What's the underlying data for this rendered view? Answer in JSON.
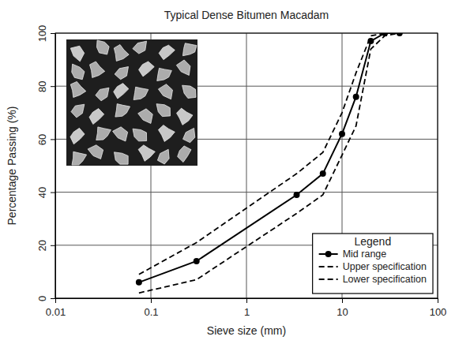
{
  "chart_data": {
    "type": "line",
    "title": "Typical Dense Bitumen Macadam",
    "x_label": "Sieve size (mm)",
    "y_label": "Percentage Passing (%)",
    "legend_title": "Legend",
    "x": [
      0.075,
      0.3,
      3.35,
      6.3,
      10,
      14,
      20,
      28,
      40
    ],
    "series": [
      {
        "name": "Mid range",
        "color": "#000000",
        "marker": "circle",
        "line_style": "solid",
        "values": [
          6,
          14,
          39,
          47,
          62,
          76,
          97,
          100,
          100
        ]
      },
      {
        "name": "Upper specification",
        "color": "#000000",
        "line_style": "dashed",
        "values": [
          9,
          21,
          47,
          55,
          70,
          85,
          99,
          100,
          100
        ]
      },
      {
        "name": "Lower specification",
        "color": "#000000",
        "line_style": "dashed",
        "values": [
          2,
          7,
          32,
          39,
          54,
          65,
          94,
          99,
          100
        ]
      }
    ],
    "log": "x",
    "xlim": [
      0.01,
      100
    ],
    "xticks": [
      0.01,
      0.1,
      1,
      10,
      100
    ],
    "ylim": [
      0,
      100
    ],
    "yticks": [
      0,
      20,
      40,
      60,
      80,
      100
    ],
    "grid": true,
    "legend": "lower right"
  }
}
